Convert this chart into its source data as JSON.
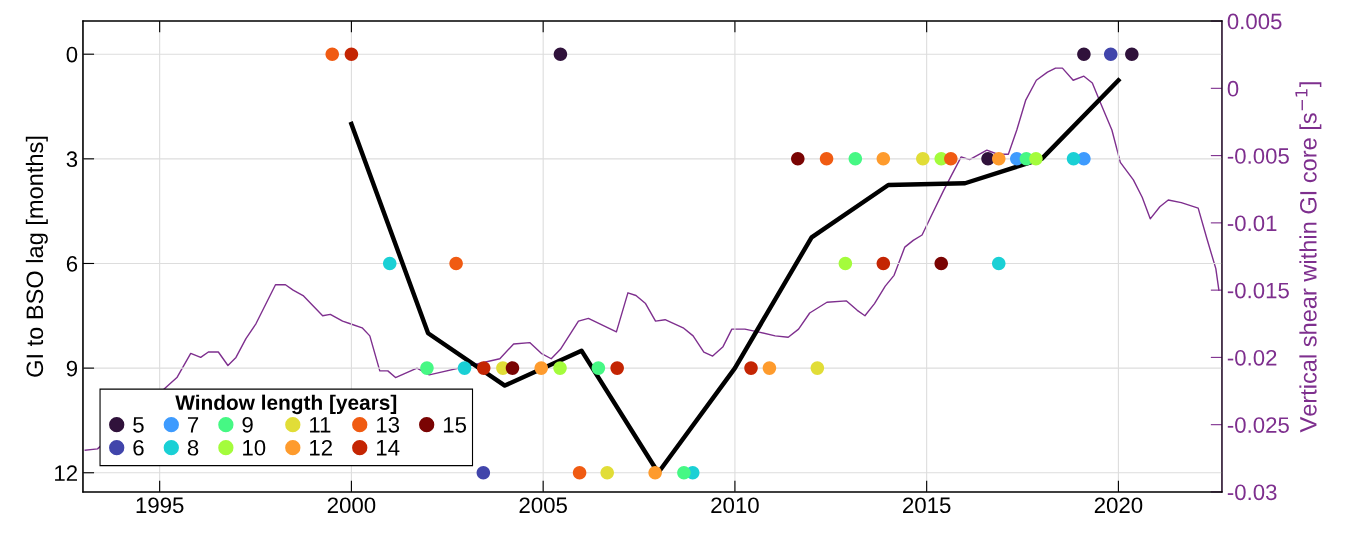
{
  "chart_data": {
    "type": "scatter",
    "ylabel": "GI to BSO lag [months]",
    "y2label": "Vertical shear within GI core [s$^{−1}$]",
    "legend_title": "Window length [years]",
    "xlim": [
      1993,
      2022.7
    ],
    "xticks": [
      1995,
      2000,
      2005,
      2010,
      2015,
      2020
    ],
    "ylim": [
      12.55,
      -0.95
    ],
    "yticks": [
      0,
      3,
      6,
      9,
      12
    ],
    "y2lim": [
      -0.03,
      0.005
    ],
    "y2ticks": [
      -0.03,
      -0.025,
      -0.02,
      -0.015,
      -0.01,
      -0.005,
      0,
      0.005
    ],
    "grid": true,
    "legend": "bottom left",
    "marker": "circle",
    "series": [
      {
        "type": "line",
        "axis": "y2",
        "color": "#7e2f8e",
        "marker": "none",
        "x": [
          1993.06,
          1993.38,
          1995.45,
          1995.81,
          1996.07,
          1996.27,
          1996.53,
          1996.78,
          1996.99,
          1997.25,
          1997.51,
          1998.02,
          1998.28,
          1998.48,
          1998.74,
          1999.25,
          1999.45,
          1999.77,
          1999.97,
          2000.28,
          2000.48,
          2000.74,
          2000.95,
          2001.15,
          2001.71,
          2002.03,
          2003.87,
          2004.23,
          2004.65,
          2004.95,
          2005.21,
          2005.45,
          2005.92,
          2006.18,
          2006.91,
          2007.21,
          2007.42,
          2007.67,
          2007.93,
          2008.18,
          2008.65,
          2008.91,
          2009.19,
          2009.42,
          2009.69,
          2009.92,
          2010.26,
          2010.6,
          2011.05,
          2011.39,
          2011.66,
          2011.95,
          2012.4,
          2012.91,
          2013.19,
          2013.39,
          2013.64,
          2013.92,
          2014.15,
          2014.43,
          2014.65,
          2014.88,
          2015.1,
          2015.44,
          2015.66,
          2015.9,
          2016.12,
          2016.57,
          2016.85,
          2017.13,
          2017.35,
          2017.58,
          2017.86,
          2018.15,
          2018.36,
          2018.54,
          2018.82,
          2019.1,
          2019.32,
          2019.55,
          2019.83,
          2020.05,
          2020.39,
          2020.62,
          2020.83,
          2021.08,
          2021.3,
          2021.64,
          2022.08,
          2022.31,
          2022.54,
          2022.62
        ],
        "values": [
          -0.0269,
          -0.0268,
          -0.0215,
          -0.0197,
          -0.02,
          -0.0196,
          -0.0196,
          -0.0206,
          -0.02,
          -0.0186,
          -0.0175,
          -0.0146,
          -0.0146,
          -0.015,
          -0.0154,
          -0.0169,
          -0.0168,
          -0.0173,
          -0.0175,
          -0.0178,
          -0.0184,
          -0.021,
          -0.021,
          -0.0215,
          -0.0208,
          -0.0213,
          -0.0201,
          -0.019,
          -0.0189,
          -0.0197,
          -0.0201,
          -0.0194,
          -0.0173,
          -0.0171,
          -0.0181,
          -0.0152,
          -0.0154,
          -0.016,
          -0.0173,
          -0.0172,
          -0.0178,
          -0.0184,
          -0.0196,
          -0.0199,
          -0.0192,
          -0.0179,
          -0.0179,
          -0.0181,
          -0.0184,
          -0.0185,
          -0.0179,
          -0.0167,
          -0.0159,
          -0.0158,
          -0.0165,
          -0.0169,
          -0.016,
          -0.0147,
          -0.0139,
          -0.0118,
          -0.0113,
          -0.0109,
          -0.0096,
          -0.0076,
          -0.0064,
          -0.0051,
          -0.0053,
          -0.0046,
          -0.0049,
          -0.0049,
          -0.0031,
          -0.0009,
          0.0006,
          0.0012,
          0.0015,
          0.0015,
          0.0006,
          0.0009,
          0.0004,
          -0.0012,
          -0.0031,
          -0.0055,
          -0.0068,
          -0.0081,
          -0.0097,
          -0.0088,
          -0.0083,
          -0.0085,
          -0.0089,
          -0.0112,
          -0.0134,
          -0.015
        ]
      },
      {
        "type": "line",
        "color": "#000000",
        "marker": "none",
        "x": [
          2000,
          2002,
          2004,
          2006,
          2008,
          2010,
          2012,
          2014,
          2016,
          2018,
          2020
        ],
        "values": [
          2.0,
          8.0,
          9.5,
          8.5,
          12.0,
          9.0,
          5.25,
          3.75,
          3.7,
          3.0,
          0.75
        ]
      },
      {
        "name": "5",
        "color": "#30123b",
        "x": [
          2005.45,
          2019.1,
          2020.35,
          2016.6
        ],
        "values": [
          0,
          0,
          0,
          3
        ]
      },
      {
        "name": "6",
        "color": "#4145ab",
        "x": [
          2019.8,
          2003.44
        ],
        "values": [
          0,
          12
        ]
      },
      {
        "name": "7",
        "color": "#3e9bfe",
        "x": [
          2017.35,
          2019.1
        ],
        "values": [
          3,
          3
        ]
      },
      {
        "name": "8",
        "color": "#1ad0d5",
        "x": [
          2018.83,
          2001.0,
          2016.88,
          2002.95,
          2008.9
        ],
        "values": [
          3,
          6,
          6,
          9,
          12
        ]
      },
      {
        "name": "9",
        "color": "#46f884",
        "x": [
          2013.14,
          2017.6,
          2001.97,
          2006.44,
          2008.67
        ],
        "values": [
          3,
          3,
          9,
          9,
          12
        ]
      },
      {
        "name": "10",
        "color": "#a4fc3c",
        "x": [
          2015.38,
          2017.85,
          2012.88,
          2005.44
        ],
        "values": [
          3,
          3,
          6,
          9
        ]
      },
      {
        "name": "11",
        "color": "#e1dd37",
        "x": [
          2014.9,
          2003.95,
          2012.15,
          2006.67
        ],
        "values": [
          3,
          9,
          9,
          12
        ]
      },
      {
        "name": "12",
        "color": "#fe9b2d",
        "x": [
          2013.87,
          2016.88,
          2004.95,
          2010.9,
          2007.92
        ],
        "values": [
          3,
          3,
          9,
          9,
          12
        ]
      },
      {
        "name": "13",
        "color": "#f05b12",
        "x": [
          1999.5,
          2012.39,
          2015.63,
          2002.73,
          2005.95
        ],
        "values": [
          0,
          3,
          3,
          6,
          12
        ]
      },
      {
        "name": "14",
        "color": "#c42503",
        "x": [
          2000.0,
          2013.87,
          2003.45,
          2006.93,
          2010.42
        ],
        "values": [
          0,
          6,
          9,
          9,
          9
        ]
      },
      {
        "name": "15",
        "color": "#7a0403",
        "x": [
          2011.64,
          2015.38,
          2004.2
        ],
        "values": [
          3,
          6,
          9
        ]
      }
    ]
  }
}
